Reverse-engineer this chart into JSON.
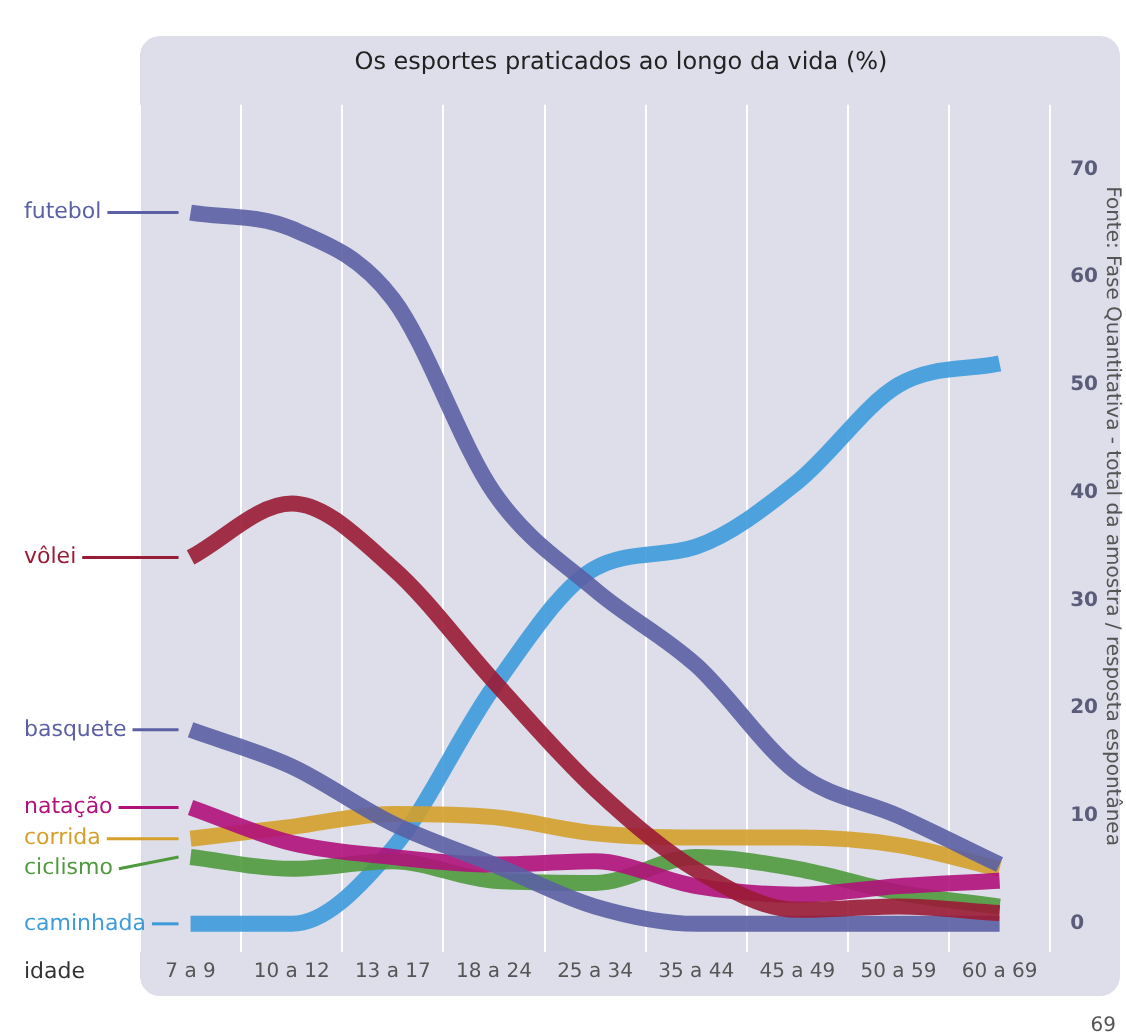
{
  "chart_data": {
    "type": "line",
    "title": "Os esportes praticados ao longo da vida (%)",
    "xlabel": "idade",
    "categories": [
      "7 a 9",
      "10 a 12",
      "13 a 17",
      "18 a 24",
      "25 a 34",
      "35 a 44",
      "45 a 49",
      "50 a 59",
      "60 a 69"
    ],
    "series": [
      {
        "name": "futebol",
        "color": "#5b5fa3",
        "values": [
          66,
          64.5,
          58,
          40,
          31,
          24,
          14,
          10,
          5.5
        ]
      },
      {
        "name": "vôlei",
        "color": "#9a1b35",
        "values": [
          34,
          39,
          33,
          22.5,
          12.5,
          5,
          1.3,
          1.6,
          1
        ]
      },
      {
        "name": "basquete",
        "color": "#5b5fa3",
        "values": [
          18,
          14.6,
          9.3,
          5.5,
          1.6,
          0,
          0,
          0,
          0
        ]
      },
      {
        "name": "natação",
        "color": "#b0117a",
        "values": [
          10.8,
          7.5,
          6.2,
          5.5,
          5.8,
          3.5,
          2.7,
          3.5,
          4
        ]
      },
      {
        "name": "corrida",
        "color": "#d4a02b",
        "values": [
          7.9,
          9,
          10.2,
          9.9,
          8.4,
          8,
          8,
          7.3,
          5.1
        ]
      },
      {
        "name": "ciclismo",
        "color": "#4f9a3e",
        "values": [
          6.2,
          5.1,
          5.8,
          4,
          3.8,
          6.2,
          5.1,
          2.9,
          1.6
        ]
      },
      {
        "name": "caminhada",
        "color": "#3d9bdc",
        "values": [
          0,
          0,
          7,
          22,
          33,
          35,
          41,
          50,
          52
        ]
      }
    ],
    "ylim": [
      -1.5,
      76
    ],
    "yticks": [
      0,
      10,
      20,
      30,
      40,
      50,
      60,
      70
    ],
    "grid": "x",
    "legend": "left",
    "line_style": "solid",
    "marker": "none",
    "annotations": [
      "Fonte: Fase Quantitativa - total da amostra / resposta espontânea",
      "69"
    ]
  }
}
